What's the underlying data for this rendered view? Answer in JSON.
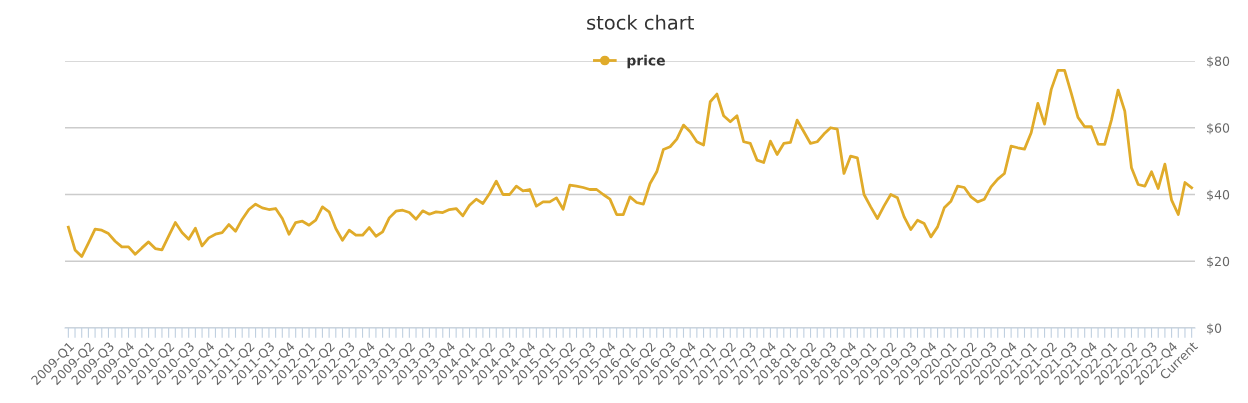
{
  "chart_data": {
    "type": "line",
    "title": "stock chart",
    "categories": [
      "2009-Q1",
      null,
      null,
      "2009-Q2",
      null,
      null,
      "2009-Q3",
      null,
      null,
      "2009-Q4",
      null,
      null,
      "2010-Q1",
      null,
      null,
      "2010-Q2",
      null,
      null,
      "2010-Q3",
      null,
      null,
      "2010-Q4",
      null,
      null,
      "2011-Q1",
      null,
      null,
      "2011-Q2",
      null,
      null,
      "2011-Q3",
      null,
      null,
      "2011-Q4",
      null,
      null,
      "2012-Q1",
      null,
      null,
      "2012-Q2",
      null,
      null,
      "2012-Q3",
      null,
      null,
      "2012-Q4",
      null,
      null,
      "2013-Q1",
      null,
      null,
      "2013-Q2",
      null,
      null,
      "2013-Q3",
      null,
      null,
      "2013-Q4",
      null,
      null,
      "2014-Q1",
      null,
      null,
      "2014-Q2",
      null,
      null,
      "2014-Q3",
      null,
      null,
      "2014-Q4",
      null,
      null,
      "2015-Q1",
      null,
      null,
      "2015-Q2",
      null,
      null,
      "2015-Q3",
      null,
      null,
      "2015-Q4",
      null,
      null,
      "2016-Q1",
      null,
      null,
      "2016-Q2",
      null,
      null,
      "2016-Q3",
      null,
      null,
      "2016-Q4",
      null,
      null,
      "2017-Q1",
      null,
      null,
      "2017-Q2",
      null,
      null,
      "2017-Q3",
      null,
      null,
      "2017-Q4",
      null,
      null,
      "2018-Q1",
      null,
      null,
      "2018-Q2",
      null,
      null,
      "2018-Q3",
      null,
      null,
      "2018-Q4",
      null,
      null,
      "2019-Q1",
      null,
      null,
      "2019-Q2",
      null,
      null,
      "2019-Q3",
      null,
      null,
      "2019-Q4",
      null,
      null,
      "2020-Q1",
      null,
      null,
      "2020-Q2",
      null,
      null,
      "2020-Q3",
      null,
      null,
      "2020-Q4",
      null,
      null,
      "2021-Q1",
      null,
      null,
      "2021-Q2",
      null,
      null,
      "2021-Q3",
      null,
      null,
      "2021-Q4",
      null,
      null,
      "2022-Q1",
      null,
      null,
      "2022-Q2",
      null,
      null,
      "2022-Q3",
      null,
      null,
      "2022-Q4",
      null,
      null,
      "Current"
    ],
    "series": [
      {
        "name": "price",
        "color": "#e0ab2a",
        "values": [
          30.2,
          23.4,
          21.4,
          25.4,
          29.6,
          29.3,
          28.3,
          26.0,
          24.3,
          24.3,
          22.1,
          24.0,
          25.8,
          23.8,
          23.4,
          27.5,
          31.6,
          28.6,
          26.6,
          29.9,
          24.6,
          27.0,
          28.1,
          28.6,
          31.0,
          29.0,
          32.6,
          35.5,
          37.1,
          36.0,
          35.5,
          35.8,
          32.8,
          28.1,
          31.6,
          32.0,
          30.8,
          32.3,
          36.3,
          34.8,
          29.8,
          26.3,
          29.3,
          27.8,
          27.8,
          30.1,
          27.5,
          28.8,
          33.0,
          35.0,
          35.3,
          34.6,
          32.6,
          35.1,
          34.1,
          34.8,
          34.6,
          35.5,
          35.8,
          33.6,
          36.8,
          38.6,
          37.3,
          40.3,
          44.0,
          40.0,
          40.0,
          42.5,
          41.1,
          41.5,
          36.5,
          37.8,
          37.8,
          39.0,
          35.6,
          42.8,
          42.5,
          42.1,
          41.5,
          41.5,
          40.0,
          38.6,
          34.0,
          34.0,
          39.3,
          37.6,
          37.1,
          43.3,
          46.8,
          53.5,
          54.3,
          56.6,
          60.8,
          58.8,
          55.8,
          54.8,
          67.8,
          70.1,
          63.6,
          61.8,
          63.6,
          55.8,
          55.3,
          50.3,
          49.6,
          56.0,
          52.0,
          55.3,
          55.6,
          62.3,
          58.8,
          55.3,
          55.8,
          58.1,
          60.0,
          59.6,
          46.3,
          51.5,
          51.0,
          40.0,
          36.3,
          32.8,
          36.6,
          40.0,
          39.0,
          33.3,
          29.5,
          32.3,
          31.3,
          27.3,
          30.3,
          36.0,
          38.0,
          42.5,
          42.1,
          39.3,
          37.8,
          38.6,
          42.3,
          44.6,
          46.3,
          54.5,
          54.0,
          53.6,
          58.5,
          67.3,
          61.1,
          71.5,
          77.2,
          77.2,
          70.3,
          63.1,
          60.3,
          60.3,
          55.1,
          55.0,
          62.3,
          71.3,
          65.0,
          48.0,
          43.0,
          42.5,
          46.8,
          41.8,
          49.1,
          38.3,
          34.0,
          43.6,
          42.0
        ]
      }
    ],
    "ylim": [
      0,
      80
    ],
    "yticks": [
      {
        "value": 0,
        "label": "$0"
      },
      {
        "value": 20,
        "label": "$20"
      },
      {
        "value": 40,
        "label": "$40"
      },
      {
        "value": 60,
        "label": "$60"
      },
      {
        "value": 80,
        "label": "$80"
      }
    ],
    "grid": "y",
    "legend": "top",
    "marker": "none",
    "line_style": "solid"
  }
}
